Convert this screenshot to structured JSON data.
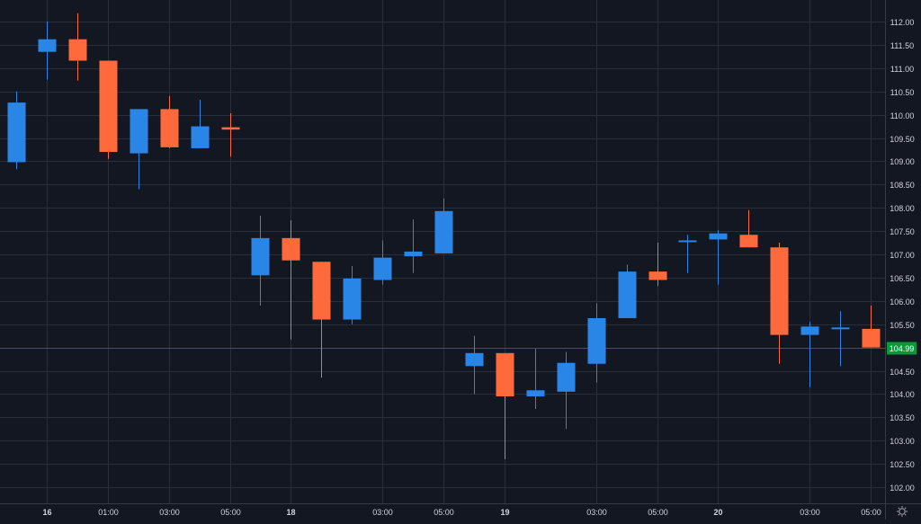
{
  "chart_data": {
    "type": "candlestick",
    "ylim": [
      101.8,
      112.6
    ],
    "y_ticks": [
      "102.00",
      "102.50",
      "103.00",
      "103.50",
      "104.00",
      "104.50",
      "105.00",
      "105.50",
      "106.00",
      "106.50",
      "107.00",
      "107.50",
      "108.00",
      "108.50",
      "109.00",
      "109.50",
      "110.00",
      "110.50",
      "111.00",
      "111.50",
      "112.00"
    ],
    "x_ticks": [
      {
        "slot": 1,
        "label": "16",
        "bold": true
      },
      {
        "slot": 3,
        "label": "01:00",
        "bold": false
      },
      {
        "slot": 5,
        "label": "03:00",
        "bold": false
      },
      {
        "slot": 7,
        "label": "05:00",
        "bold": false
      },
      {
        "slot": 9,
        "label": "18",
        "bold": true
      },
      {
        "slot": 12,
        "label": "03:00",
        "bold": false
      },
      {
        "slot": 14,
        "label": "05:00",
        "bold": false
      },
      {
        "slot": 16,
        "label": "19",
        "bold": true
      },
      {
        "slot": 19,
        "label": "03:00",
        "bold": false
      },
      {
        "slot": 21,
        "label": "05:00",
        "bold": false
      },
      {
        "slot": 23,
        "label": "20",
        "bold": true
      },
      {
        "slot": 26,
        "label": "03:00",
        "bold": false
      },
      {
        "slot": 28,
        "label": "05:00",
        "bold": false
      }
    ],
    "up_color": "#2a86e6",
    "down_color": "#ff6a3d",
    "candles": [
      {
        "slot": 0,
        "open": 108.98,
        "high": 110.5,
        "low": 108.83,
        "close": 110.26
      },
      {
        "slot": 1,
        "open": 111.35,
        "high": 112.0,
        "low": 110.75,
        "close": 111.62
      },
      {
        "slot": 2,
        "open": 111.62,
        "high": 112.18,
        "low": 110.73,
        "close": 111.16
      },
      {
        "slot": 3,
        "open": 111.16,
        "high": 111.16,
        "low": 109.05,
        "close": 109.2
      },
      {
        "slot": 4,
        "open": 109.17,
        "high": 110.12,
        "low": 108.4,
        "close": 110.12
      },
      {
        "slot": 5,
        "open": 110.12,
        "high": 110.4,
        "low": 109.28,
        "close": 109.3
      },
      {
        "slot": 6,
        "open": 109.28,
        "high": 110.32,
        "low": 109.28,
        "close": 109.75
      },
      {
        "slot": 7,
        "open": 109.73,
        "high": 110.03,
        "low": 109.1,
        "close": 109.68
      },
      {
        "slot": 8,
        "open": 106.55,
        "high": 107.83,
        "low": 105.9,
        "close": 107.35
      },
      {
        "slot": 9,
        "open": 107.35,
        "high": 107.73,
        "low": 105.17,
        "close": 106.87
      },
      {
        "slot": 10,
        "open": 106.84,
        "high": 106.84,
        "low": 104.35,
        "close": 105.6
      },
      {
        "slot": 11,
        "open": 105.6,
        "high": 106.75,
        "low": 105.5,
        "close": 106.48
      },
      {
        "slot": 12,
        "open": 106.45,
        "high": 107.3,
        "low": 106.35,
        "close": 106.93
      },
      {
        "slot": 13,
        "open": 106.96,
        "high": 107.75,
        "low": 106.6,
        "close": 107.06
      },
      {
        "slot": 14,
        "open": 107.02,
        "high": 108.2,
        "low": 107.02,
        "close": 107.93
      },
      {
        "slot": 15,
        "open": 104.6,
        "high": 105.25,
        "low": 104.0,
        "close": 104.88
      },
      {
        "slot": 16,
        "open": 104.88,
        "high": 104.88,
        "low": 102.6,
        "close": 103.95
      },
      {
        "slot": 17,
        "open": 103.95,
        "high": 104.97,
        "low": 103.68,
        "close": 104.08
      },
      {
        "slot": 18,
        "open": 104.05,
        "high": 104.9,
        "low": 103.25,
        "close": 104.67
      },
      {
        "slot": 19,
        "open": 104.65,
        "high": 105.95,
        "low": 104.25,
        "close": 105.63
      },
      {
        "slot": 20,
        "open": 105.63,
        "high": 106.78,
        "low": 105.63,
        "close": 106.63
      },
      {
        "slot": 21,
        "open": 106.63,
        "high": 107.25,
        "low": 106.32,
        "close": 106.45
      },
      {
        "slot": 22,
        "open": 107.3,
        "high": 107.42,
        "low": 106.6,
        "close": 107.3
      },
      {
        "slot": 23,
        "open": 107.32,
        "high": 107.52,
        "low": 106.35,
        "close": 107.45
      },
      {
        "slot": 24,
        "open": 107.42,
        "high": 107.95,
        "low": 107.15,
        "close": 107.15
      },
      {
        "slot": 25,
        "open": 107.15,
        "high": 107.25,
        "low": 104.65,
        "close": 105.27
      },
      {
        "slot": 26,
        "open": 105.27,
        "high": 105.55,
        "low": 104.15,
        "close": 105.45
      },
      {
        "slot": 27,
        "open": 105.43,
        "high": 105.78,
        "low": 104.6,
        "close": 105.43
      },
      {
        "slot": 28,
        "open": 105.4,
        "high": 105.9,
        "low": 105.0,
        "close": 105.0
      }
    ],
    "current_price": {
      "value": 104.99,
      "label": "104.99"
    },
    "grid": true
  },
  "colors": {
    "background": "#131722",
    "grid": "#2a2e39",
    "axis_text": "#d1d4dc",
    "axis_border": "#363a45",
    "price_line": "#1f6b3a",
    "price_tag": "#089a3a"
  },
  "icons": {
    "settings": "gear-icon"
  }
}
